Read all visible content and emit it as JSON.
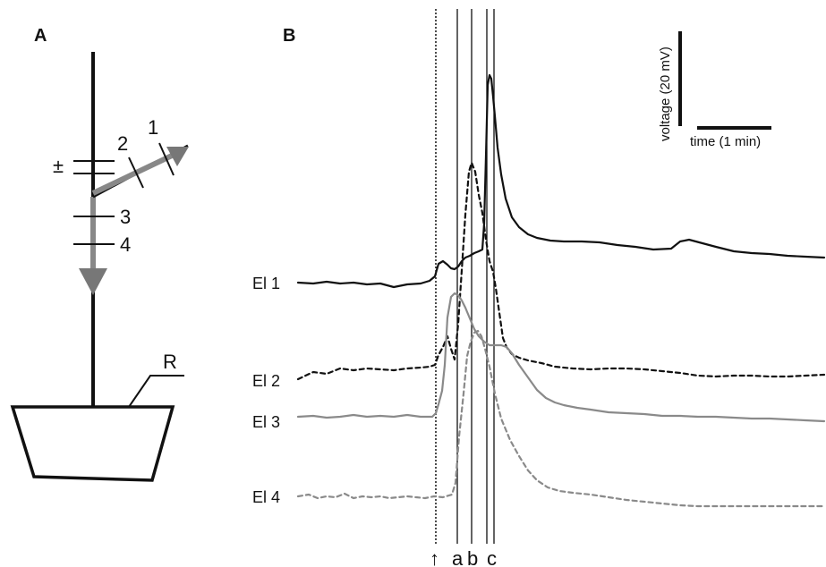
{
  "panels": {
    "a": "A",
    "b": "B"
  },
  "plant": {
    "electrode_labels": [
      "1",
      "2",
      "3",
      "4"
    ],
    "stimulus_sign": "±",
    "root_label": "R"
  },
  "scale_bar": {
    "voltage": "voltage (20 mV)",
    "time": "time (1 min)"
  },
  "markers": {
    "arrow": "↑",
    "a": "a",
    "b": "b",
    "c": "c"
  },
  "traces": [
    {
      "label": "El 1",
      "color": "#111111",
      "style": "solid"
    },
    {
      "label": "El 2",
      "color": "#111111",
      "style": "dashed"
    },
    {
      "label": "El 3",
      "color": "#8a8a8a",
      "style": "solid"
    },
    {
      "label": "El 4",
      "color": "#8a8a8a",
      "style": "dashed"
    }
  ]
}
